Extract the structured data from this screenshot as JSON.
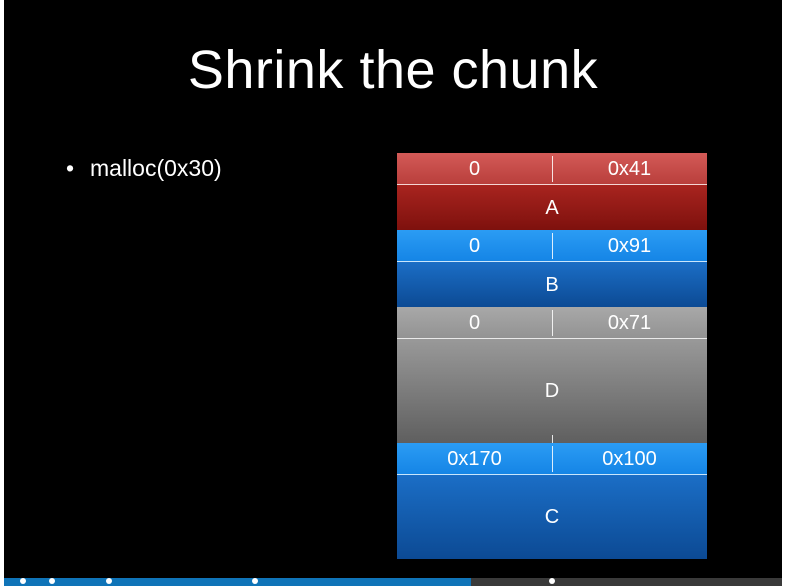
{
  "slide": {
    "title": "Shrink the chunk",
    "bullets": [
      "malloc(0x30)"
    ],
    "bullet_glyph": "•"
  },
  "chunks": [
    {
      "id": "A",
      "prev_size": "0",
      "size": "0x41",
      "label": "A",
      "color": "#b93f3c"
    },
    {
      "id": "B",
      "prev_size": "0",
      "size": "0x91",
      "label": "B",
      "color": "#1585e6"
    },
    {
      "id": "D",
      "prev_size": "0",
      "size": "0x71",
      "label": "D",
      "color": "#939393"
    },
    {
      "id": "C",
      "prev_size": "0x170",
      "size": "0x100",
      "label": "C",
      "color": "#1585e6"
    }
  ],
  "progress": {
    "fraction": 0.6,
    "marker_fractions": [
      0.024,
      0.062,
      0.135,
      0.322,
      0.705
    ]
  }
}
